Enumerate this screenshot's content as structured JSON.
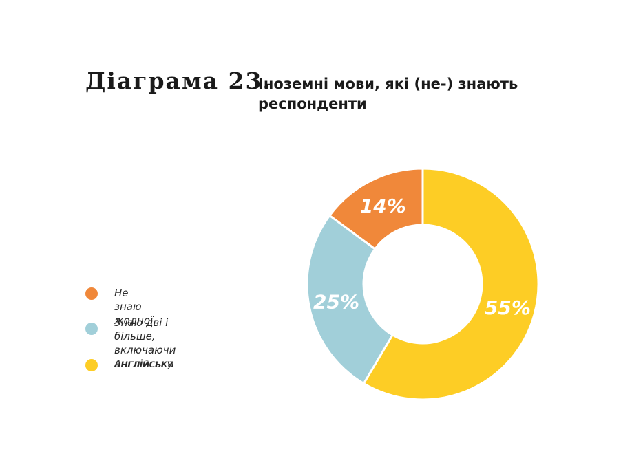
{
  "title": {
    "label": "Діаграма 23.",
    "text": "Іноземні мови, які (не-) знають респонденти"
  },
  "colors": {
    "orange": "#F0883A",
    "blue": "#A1CFD9",
    "yellow": "#FDCD25"
  },
  "chart_data": {
    "type": "pie",
    "donut": true,
    "categories": [
      "Англійська",
      "Знаю дві і більше,\nвключаючи англійську",
      "Не знаю жодної"
    ],
    "values": [
      55,
      25,
      14
    ],
    "labels": [
      "55%",
      "25%",
      "14%"
    ],
    "colors": [
      "#FDCD25",
      "#A1CFD9",
      "#F0883A"
    ],
    "legend": {
      "placement": "left",
      "entries": [
        {
          "label": "Не знаю жодної",
          "color": "#F0883A"
        },
        {
          "label": "Знаю дві і більше,\nвключаючи англійську",
          "color": "#A1CFD9"
        },
        {
          "label": "Англійська",
          "color": "#FDCD25"
        }
      ]
    }
  }
}
